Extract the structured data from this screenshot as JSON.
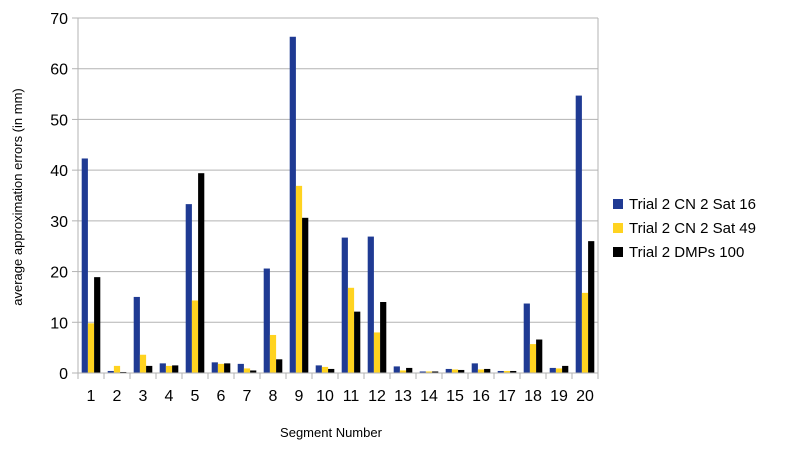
{
  "chart_data": {
    "type": "bar",
    "title": "",
    "xlabel": "Segment Number",
    "ylabel": "average approximation errors (in mm)",
    "ylim": [
      0,
      70
    ],
    "yticks": [
      0,
      10,
      20,
      30,
      40,
      50,
      60,
      70
    ],
    "grid": "horizontal",
    "legend_position": "right",
    "categories": [
      "1",
      "2",
      "3",
      "4",
      "5",
      "6",
      "7",
      "8",
      "9",
      "10",
      "11",
      "12",
      "13",
      "14",
      "15",
      "16",
      "17",
      "18",
      "19",
      "20"
    ],
    "series": [
      {
        "name": "Trial 2 CN 2 Sat 16",
        "color": "#1f3a93",
        "values": [
          42.3,
          0.4,
          15.0,
          1.9,
          33.3,
          2.1,
          1.8,
          20.6,
          66.3,
          1.5,
          26.7,
          26.9,
          1.3,
          0.3,
          0.8,
          1.9,
          0.4,
          13.7,
          1.0,
          54.7
        ]
      },
      {
        "name": "Trial 2 CN 2 Sat 49",
        "color": "#ffd320",
        "values": [
          9.8,
          1.4,
          3.6,
          1.4,
          14.3,
          1.8,
          0.9,
          7.5,
          36.9,
          1.2,
          16.8,
          8.0,
          0.5,
          0.3,
          0.7,
          0.7,
          0.4,
          5.7,
          0.9,
          15.8
        ]
      },
      {
        "name": "Trial 2 DMPs 100",
        "color": "#000000",
        "values": [
          18.9,
          0.2,
          1.4,
          1.5,
          39.4,
          1.9,
          0.5,
          2.7,
          30.6,
          0.8,
          12.1,
          14.0,
          1.0,
          0.3,
          0.6,
          0.8,
          0.4,
          6.6,
          1.4,
          26.0
        ]
      }
    ]
  }
}
